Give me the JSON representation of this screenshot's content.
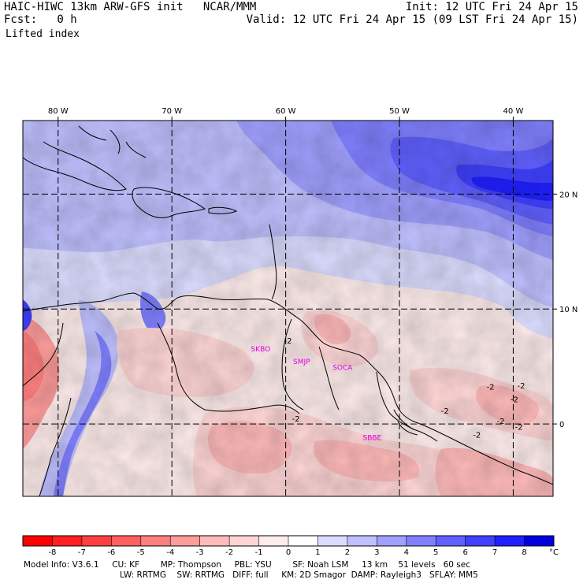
{
  "header": {
    "line1_left": "HAIC-HIWC 13km ARW-GFS init   NCAR/MMM",
    "line2_left": "Fcst:   0 h",
    "line1_right": "Init: 12 UTC Fri 24 Apr 15",
    "line2_right": "Valid: 12 UTC Fri 24 Apr 15 (09 LST Fri 24 Apr 15)",
    "field_name": "Lifted index"
  },
  "map": {
    "lon_labels": [
      {
        "lon": -80,
        "text": "80 W"
      },
      {
        "lon": -70,
        "text": "70 W"
      },
      {
        "lon": -60,
        "text": "60 W"
      },
      {
        "lon": -50,
        "text": "50 W"
      },
      {
        "lon": -40,
        "text": "40 W"
      }
    ],
    "lat_labels": [
      {
        "lat": 20,
        "text": "20 N"
      },
      {
        "lat": 10,
        "text": "10 N"
      },
      {
        "lat": 0,
        "text": "0"
      }
    ],
    "lon_range": [
      -83.1,
      -36.5
    ],
    "lat_range": [
      -6.3,
      26.4
    ],
    "contour_labels": [
      {
        "text": "-2",
        "lon": -59.8,
        "lat": 7.0
      },
      {
        "text": "-2",
        "lon": -59.1,
        "lat": 0.2
      },
      {
        "text": "-2",
        "lon": -46.0,
        "lat": 0.9
      },
      {
        "text": "-2",
        "lon": -43.2,
        "lat": -1.2
      },
      {
        "text": "-2",
        "lon": -41.1,
        "lat": 0.0
      },
      {
        "text": "-2",
        "lon": -42.0,
        "lat": 3.0
      },
      {
        "text": "-2",
        "lon": -39.9,
        "lat": 1.9
      },
      {
        "text": "-2",
        "lon": -39.3,
        "lat": 3.1
      },
      {
        "text": "-2",
        "lon": -39.5,
        "lat": -0.5
      }
    ],
    "station_labels": [
      {
        "text": "SKBO",
        "lon": -62.2,
        "lat": 6.3
      },
      {
        "text": "SMJP",
        "lon": -58.6,
        "lat": 5.2
      },
      {
        "text": "SOCA",
        "lon": -55.0,
        "lat": 4.7
      },
      {
        "text": "SBBE",
        "lon": -52.4,
        "lat": -1.4
      }
    ]
  },
  "colorbar": {
    "levels": [
      "-8",
      "-7",
      "-6",
      "-5",
      "-4",
      "-3",
      "-2",
      "-1",
      "0",
      "1",
      "2",
      "3",
      "4",
      "5",
      "6",
      "7",
      "8"
    ],
    "unit": "°C",
    "colors": [
      "#ff0000",
      "#ff2020",
      "#ff4040",
      "#ff6060",
      "#ff8080",
      "#ff9c9c",
      "#ffbaba",
      "#ffd6d6",
      "#ffecec",
      "#ffffff",
      "#dcdcff",
      "#c0c0ff",
      "#a0a0ff",
      "#8080ff",
      "#6060ff",
      "#4040ff",
      "#2020ff",
      "#0000e0"
    ]
  },
  "footer": {
    "line1": "Model Info: V3.6.1     CU: KF        MP: Thompson     PBL: YSU        SF: Noah LSM     13 km    51 levels   60 sec",
    "line2": "LW: RRTMG    SW: RRTMG   DIFF: full     KM: 2D Smagor  DAMP: Rayleigh3   SFLAY: MM5"
  }
}
